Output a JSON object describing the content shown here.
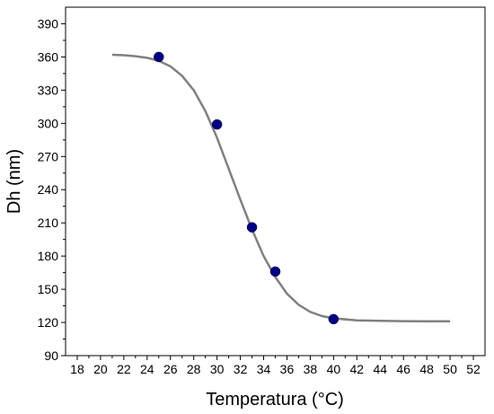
{
  "chart_data": {
    "type": "scatter",
    "xlabel": "Temperatura (°C)",
    "ylabel": "Dh (nm)",
    "xlim": [
      17,
      53
    ],
    "ylim": [
      90,
      405
    ],
    "x_ticks": [
      18,
      20,
      22,
      24,
      26,
      28,
      30,
      32,
      34,
      36,
      38,
      40,
      42,
      44,
      46,
      48,
      50,
      52
    ],
    "y_ticks": [
      90,
      120,
      150,
      180,
      210,
      240,
      270,
      300,
      330,
      360,
      390
    ],
    "grid": false,
    "legend": "none",
    "series": [
      {
        "kind": "points",
        "marker": "circle",
        "color": "#000080",
        "points": [
          {
            "x": 25,
            "y": 360
          },
          {
            "x": 30,
            "y": 299
          },
          {
            "x": 33,
            "y": 206
          },
          {
            "x": 35,
            "y": 166
          },
          {
            "x": 40,
            "y": 123
          }
        ]
      },
      {
        "kind": "fit",
        "color": "#808080",
        "points": [
          {
            "x": 21,
            "y": 362
          },
          {
            "x": 22,
            "y": 361.6
          },
          {
            "x": 23,
            "y": 360.7
          },
          {
            "x": 24,
            "y": 359.2
          },
          {
            "x": 25,
            "y": 356.5
          },
          {
            "x": 26,
            "y": 351.5
          },
          {
            "x": 27,
            "y": 343
          },
          {
            "x": 28,
            "y": 330
          },
          {
            "x": 29,
            "y": 311
          },
          {
            "x": 30,
            "y": 287
          },
          {
            "x": 31,
            "y": 259
          },
          {
            "x": 32,
            "y": 231
          },
          {
            "x": 33,
            "y": 204
          },
          {
            "x": 34,
            "y": 180
          },
          {
            "x": 35,
            "y": 161
          },
          {
            "x": 36,
            "y": 146
          },
          {
            "x": 37,
            "y": 136
          },
          {
            "x": 38,
            "y": 129.5
          },
          {
            "x": 39,
            "y": 125.8
          },
          {
            "x": 40,
            "y": 123.7
          },
          {
            "x": 42,
            "y": 121.9
          },
          {
            "x": 44,
            "y": 121.4
          },
          {
            "x": 46,
            "y": 121.2
          },
          {
            "x": 48,
            "y": 121.1
          },
          {
            "x": 50,
            "y": 121
          }
        ]
      }
    ]
  }
}
